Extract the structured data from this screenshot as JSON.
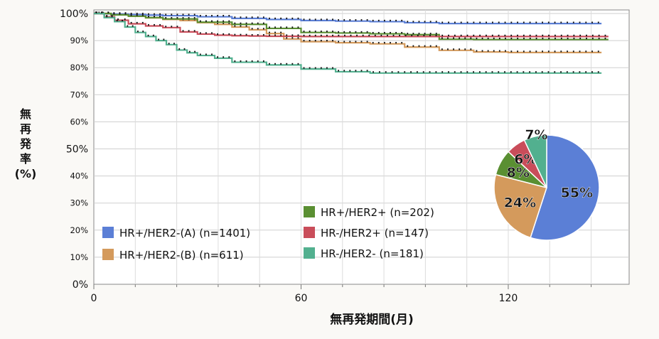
{
  "chart_data": [
    {
      "type": "line",
      "subtype": "kaplan-meier",
      "title": "",
      "xlabel": "無再発期間(月)",
      "ylabel_chars": [
        "無",
        "再",
        "発",
        "率",
        "(%)"
      ],
      "xlim": [
        0,
        155
      ],
      "ylim": [
        0,
        100
      ],
      "x_ticks": [
        "0",
        "60",
        "120"
      ],
      "y_ticks": [
        "0%",
        "10%",
        "20%",
        "30%",
        "40%",
        "50%",
        "60%",
        "70%",
        "80%",
        "90%",
        "100%"
      ],
      "grid": true,
      "legend_position": "bottom-left",
      "series": [
        {
          "name": "HR+/HER2-(A) (n=1401)",
          "color": "#5b7fd6",
          "x": [
            0,
            2,
            5,
            10,
            15,
            20,
            30,
            40,
            50,
            60,
            70,
            80,
            90,
            100,
            120,
            147
          ],
          "y": [
            100,
            99.9,
            99.8,
            99.6,
            99.4,
            99.2,
            98.8,
            98.2,
            97.8,
            97.4,
            97.2,
            97.0,
            96.6,
            96.3,
            96.3,
            96.3
          ]
        },
        {
          "name": "HR+/HER2-(B) (n=611)",
          "color": "#d49a5c",
          "x": [
            0,
            5,
            10,
            15,
            20,
            25,
            30,
            35,
            40,
            45,
            50,
            55,
            60,
            70,
            80,
            90,
            100,
            110,
            120,
            147
          ],
          "y": [
            100,
            99.5,
            99,
            98.4,
            97.8,
            97.4,
            96.6,
            96,
            95,
            94,
            92.6,
            90.6,
            89.6,
            89.2,
            88.8,
            87.6,
            86.4,
            85.8,
            85.6,
            85.6
          ]
        },
        {
          "name": "HR+/HER2+ (n=202)",
          "color": "#5a8f32",
          "x": [
            0,
            5,
            10,
            15,
            20,
            30,
            40,
            50,
            60,
            70,
            80,
            90,
            100,
            110,
            120,
            149
          ],
          "y": [
            100,
            99.5,
            99,
            98.5,
            98,
            96.8,
            96,
            94.5,
            93,
            92.8,
            92.5,
            92.2,
            90.5,
            90.4,
            90.4,
            90.4
          ]
        },
        {
          "name": "HR-/HER2+ (n=147)",
          "color": "#c94d5a",
          "x": [
            0,
            3,
            6,
            10,
            15,
            20,
            25,
            30,
            35,
            40,
            45,
            50,
            60,
            70,
            100,
            149
          ],
          "y": [
            100,
            98.8,
            97.5,
            96.2,
            95.4,
            94.8,
            93.2,
            92.4,
            92,
            91.8,
            91.7,
            91.6,
            91.5,
            91.5,
            91.5,
            91.5
          ]
        },
        {
          "name": "HR-/HER2- (n=181)",
          "color": "#52b08f",
          "x": [
            0,
            3,
            6,
            9,
            12,
            15,
            18,
            21,
            24,
            27,
            30,
            35,
            40,
            45,
            50,
            60,
            70,
            80,
            100,
            147
          ],
          "y": [
            100,
            98.5,
            97,
            95,
            93,
            91.5,
            90,
            88.5,
            86.5,
            85.5,
            84.5,
            83.5,
            82,
            82,
            81,
            79.5,
            78.5,
            78,
            78,
            78
          ]
        }
      ]
    },
    {
      "type": "pie",
      "title": "",
      "labels": [
        "HR+/HER2-(A) (n=1401)",
        "HR+/HER2-(B) (n=611)",
        "HR+/HER2+ (n=202)",
        "HR-/HER2+ (n=147)",
        "HR-/HER2- (n=181)"
      ],
      "values": [
        55,
        24,
        8,
        6,
        7
      ],
      "value_labels": [
        "55%",
        "24%",
        "8%",
        "6%",
        "7%"
      ],
      "colors": [
        "#5b7fd6",
        "#d49a5c",
        "#5a8f32",
        "#c94d5a",
        "#52b08f"
      ]
    }
  ]
}
